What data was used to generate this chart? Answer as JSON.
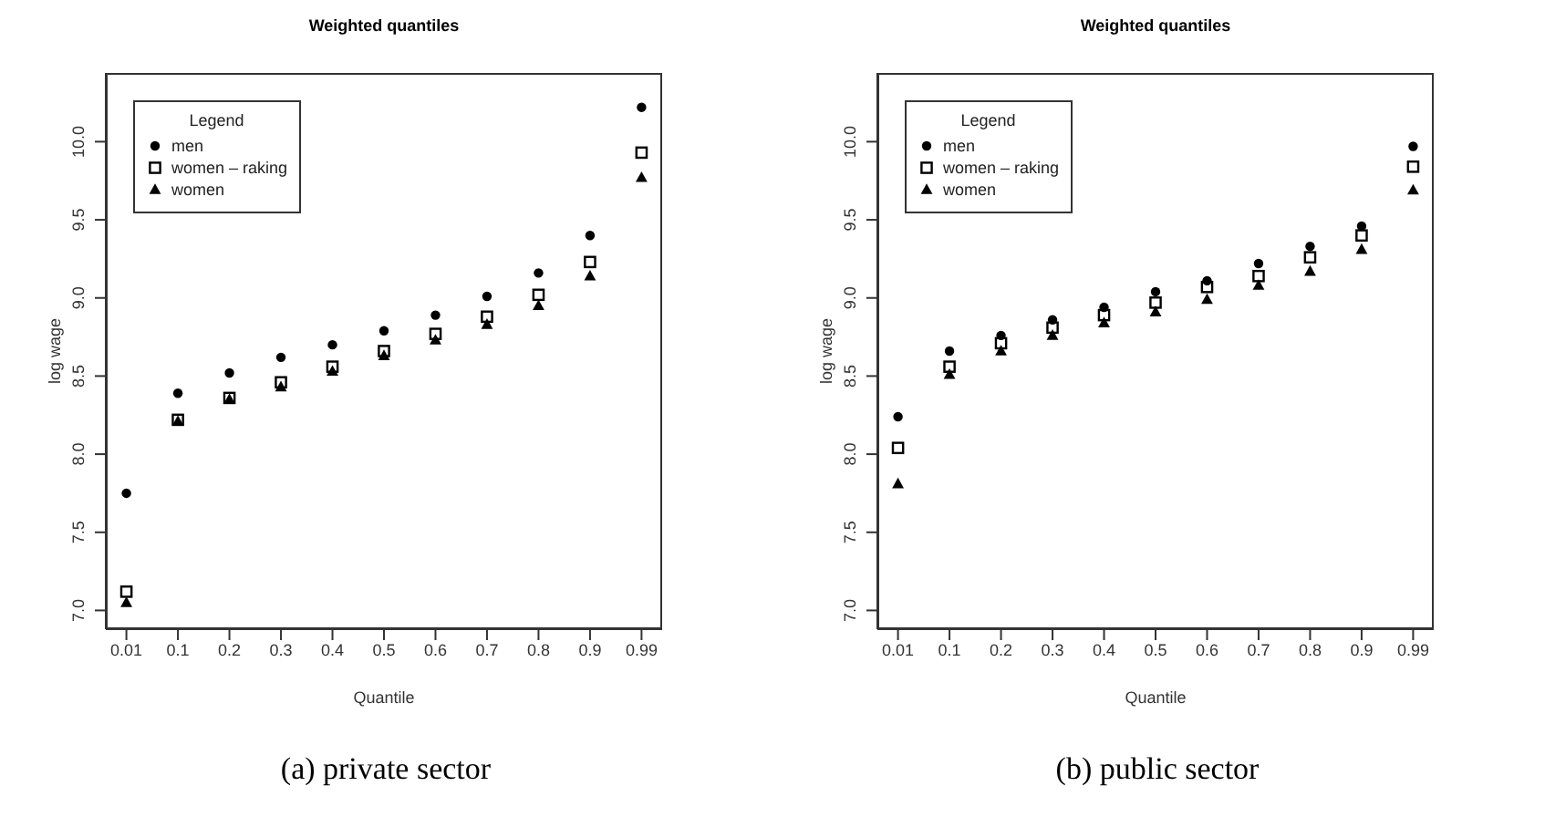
{
  "chart_data": [
    {
      "type": "scatter",
      "title": "Weighted quantiles",
      "xlabel": "Quantile",
      "ylabel": "log wage",
      "legend_title": "Legend",
      "legend": "top left",
      "grid": false,
      "categories": [
        "0.01",
        "0.1",
        "0.2",
        "0.3",
        "0.4",
        "0.5",
        "0.6",
        "0.7",
        "0.8",
        "0.9",
        "0.99"
      ],
      "ylim": [
        6.88,
        10.44
      ],
      "yticks": [
        {
          "value": 7,
          "label": "7.0"
        },
        {
          "value": 7.5,
          "label": "7.5"
        },
        {
          "value": 8,
          "label": "8.0"
        },
        {
          "value": 8.5,
          "label": "8.5"
        },
        {
          "value": 9,
          "label": "9.0"
        },
        {
          "value": 9.5,
          "label": "9.5"
        },
        {
          "value": 10,
          "label": "10.0"
        }
      ],
      "series": [
        {
          "name": "men",
          "color": "#000000",
          "marker": "circle",
          "values": [
            7.75,
            8.39,
            8.52,
            8.62,
            8.7,
            8.79,
            8.89,
            9.01,
            9.16,
            9.4,
            10.22
          ]
        },
        {
          "name": "women – raking",
          "color": "#000000",
          "marker": "square",
          "values": [
            7.12,
            8.22,
            8.36,
            8.46,
            8.56,
            8.66,
            8.77,
            8.88,
            9.02,
            9.23,
            9.93
          ]
        },
        {
          "name": "women",
          "color": "#000000",
          "marker": "triangle",
          "values": [
            7.05,
            8.21,
            8.35,
            8.43,
            8.53,
            8.63,
            8.73,
            8.83,
            8.95,
            9.14,
            9.77
          ]
        }
      ],
      "annotations": [
        "(a) private sector"
      ]
    },
    {
      "type": "scatter",
      "title": "Weighted quantiles",
      "xlabel": "Quantile",
      "ylabel": "log wage",
      "legend_title": "Legend",
      "legend": "top left",
      "grid": false,
      "categories": [
        "0.01",
        "0.1",
        "0.2",
        "0.3",
        "0.4",
        "0.5",
        "0.6",
        "0.7",
        "0.8",
        "0.9",
        "0.99"
      ],
      "ylim": [
        6.88,
        10.44
      ],
      "yticks": [
        {
          "value": 7,
          "label": "7.0"
        },
        {
          "value": 7.5,
          "label": "7.5"
        },
        {
          "value": 8,
          "label": "8.0"
        },
        {
          "value": 8.5,
          "label": "8.5"
        },
        {
          "value": 9,
          "label": "9.0"
        },
        {
          "value": 9.5,
          "label": "9.5"
        },
        {
          "value": 10,
          "label": "10.0"
        }
      ],
      "series": [
        {
          "name": "men",
          "color": "#000000",
          "marker": "circle",
          "values": [
            8.24,
            8.66,
            8.76,
            8.86,
            8.94,
            9.04,
            9.11,
            9.22,
            9.33,
            9.46,
            9.97
          ]
        },
        {
          "name": "women – raking",
          "color": "#000000",
          "marker": "square",
          "values": [
            8.04,
            8.56,
            8.71,
            8.81,
            8.89,
            8.97,
            9.07,
            9.14,
            9.26,
            9.4,
            9.84
          ]
        },
        {
          "name": "women",
          "color": "#000000",
          "marker": "triangle",
          "values": [
            7.81,
            8.51,
            8.66,
            8.76,
            8.84,
            8.91,
            8.99,
            9.08,
            9.17,
            9.31,
            9.69
          ]
        }
      ],
      "annotations": [
        "(b) public sector"
      ]
    }
  ]
}
